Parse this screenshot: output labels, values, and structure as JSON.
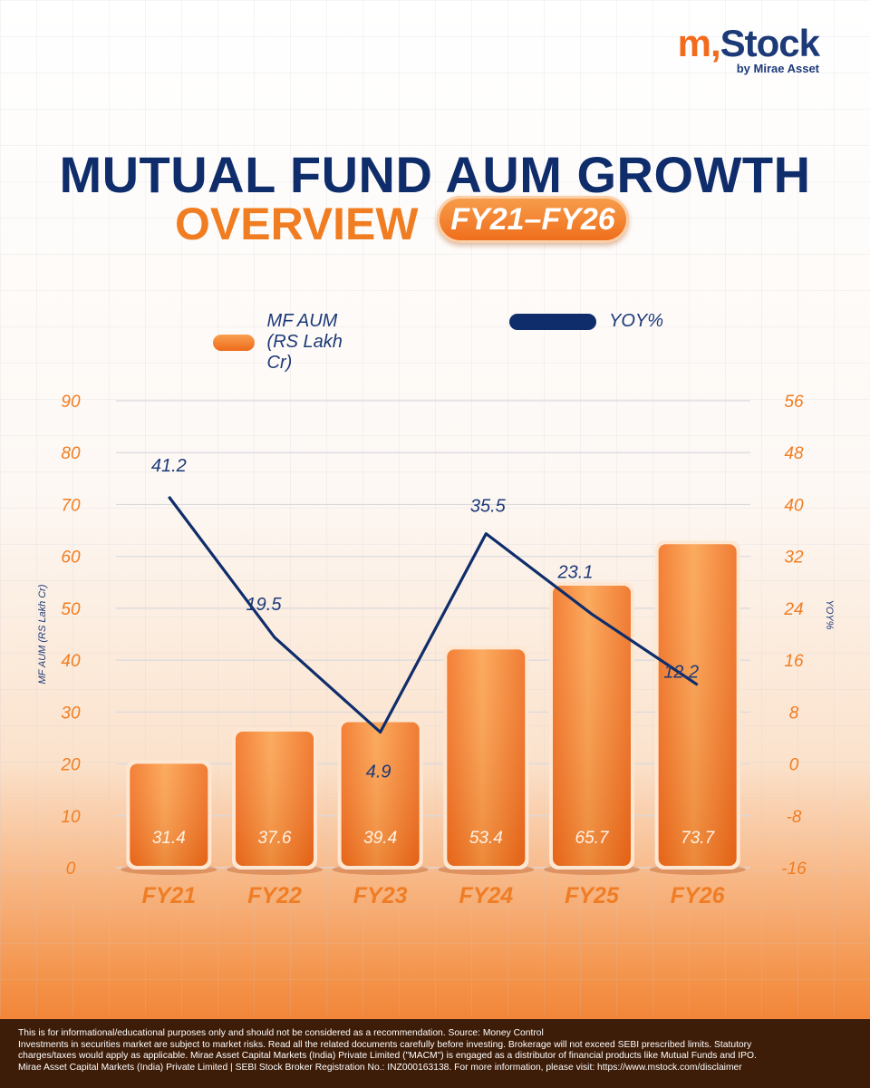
{
  "brand": {
    "logo_m": "m",
    "logo_comma": ",",
    "logo_stock": "Stock",
    "byline": "by Mirae Asset"
  },
  "heading": {
    "title": "MUTUAL FUND AUM GROWTH",
    "subtitle": "OVERVIEW",
    "period": "FY21–FY26"
  },
  "chart_data": {
    "type": "bar",
    "categories": [
      "FY21",
      "FY22",
      "FY23",
      "FY24",
      "FY25",
      "FY26"
    ],
    "series": [
      {
        "name": "MF AUM (RS Lakh Cr)",
        "type": "bar",
        "axis": "left",
        "values": [
          31.4,
          37.6,
          39.4,
          53.4,
          65.7,
          73.7
        ]
      },
      {
        "name": "YOY%",
        "type": "line",
        "axis": "right",
        "values": [
          41.2,
          19.5,
          4.9,
          35.5,
          23.1,
          12.2
        ]
      }
    ],
    "ylabel": "MF AUM (RS Lakh Cr)",
    "y2label": "YOY%",
    "ylim": [
      0,
      90
    ],
    "y2lim": [
      -16,
      56
    ],
    "yticks": [
      0,
      10,
      20,
      30,
      40,
      50,
      60,
      70,
      80,
      90
    ],
    "y2ticks": [
      -16,
      -8,
      0,
      8,
      16,
      24,
      32,
      40,
      48,
      56
    ],
    "legend": "top-center",
    "grid": true,
    "colors": {
      "bar": "#f07a22",
      "line": "#0f2d6b",
      "axis_text": "#f07d22",
      "label_text": "#1d3a78"
    }
  },
  "disclaimer": [
    "This is for informational/educational purposes only and should not be considered as a recommendation. Source: Money Control",
    "Investments in securities market are subject to market risks. Read all the related documents carefully before investing. Brokerage will not exceed SEBI prescribed limits. Statutory",
    "charges/taxes would apply as applicable. Mirae Asset Capital Markets (India) Private Limited (\"MACM\") is engaged as a distributor of financial products like Mutual Funds and IPO.",
    "Mirae Asset Capital Markets (India) Private Limited | SEBI Stock Broker Registration No.: INZ000163138. For more information, please visit: https://www.mstock.com/disclaimer"
  ]
}
